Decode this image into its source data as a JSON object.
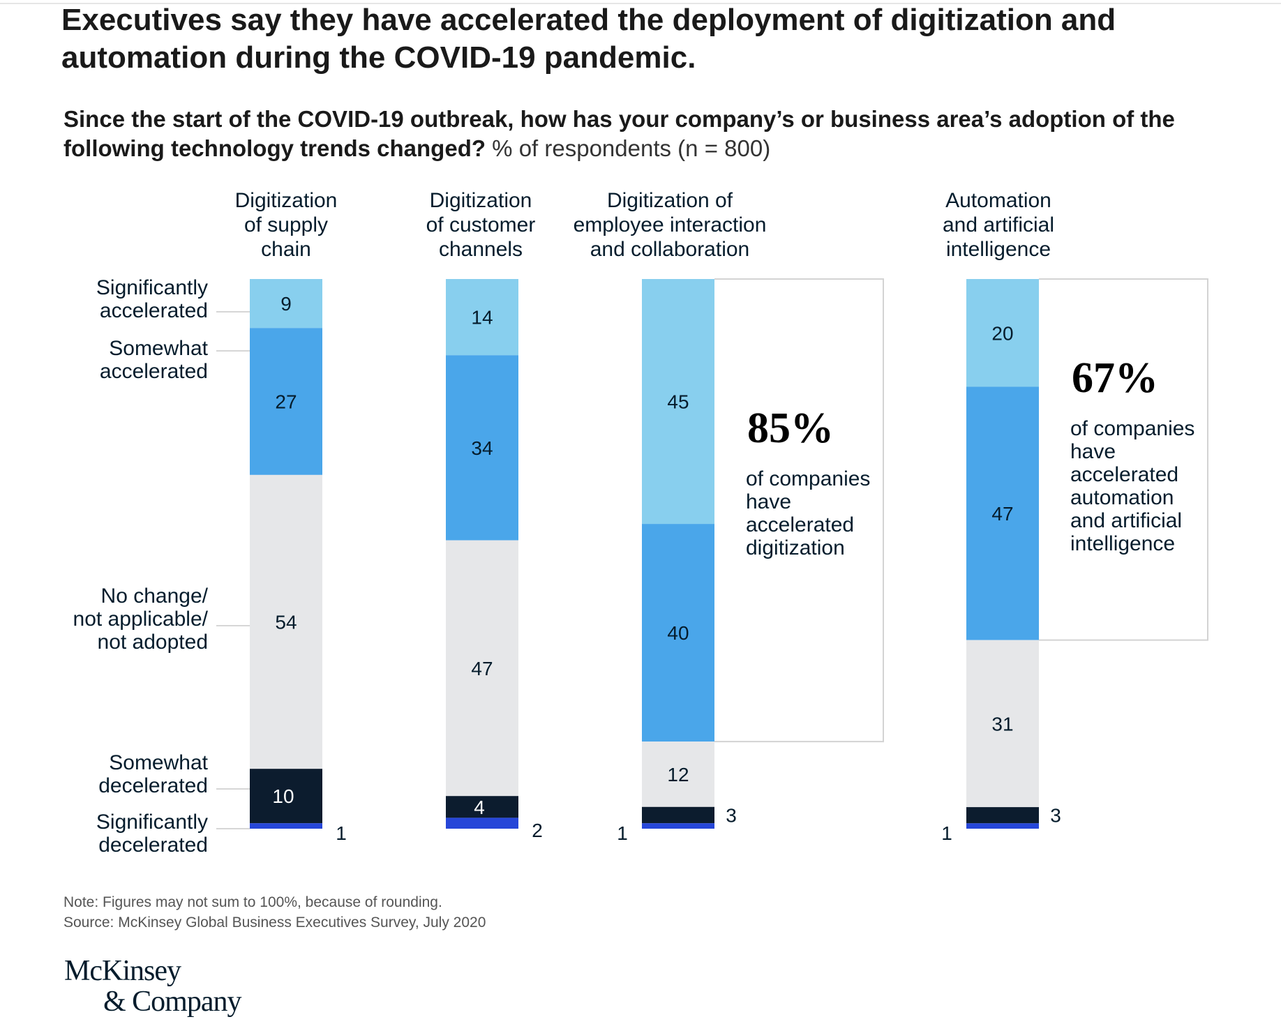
{
  "title": "Executives say they have accelerated the deployment of digitization and automation during the COVID-19 pandemic.",
  "subtitle_question": "Since the start of the COVID-19 outbreak, how has your company’s or business area’s adoption of the following technology trends changed?",
  "subtitle_unit": " % of respondents (n = 800)",
  "note": "Note: Figures may not sum to 100%, because of rounding.",
  "source": "Source: McKinsey Global Business Executives Survey, July 2020",
  "logo": {
    "line1": "McKinsey",
    "line2": "& Company"
  },
  "colors": {
    "significantly_accelerated": "#88cfee",
    "somewhat_accelerated": "#4aa6ea",
    "no_change": "#e6e7e9",
    "somewhat_decelerated": "#0c1c2e",
    "significantly_decelerated": "#2646d8",
    "bracket": "#d3d3d3"
  },
  "chart_data": {
    "type": "bar",
    "stacked": true,
    "categories": [
      [
        "Digitization",
        "of supply",
        "chain"
      ],
      [
        "Digitization",
        "of customer",
        "channels"
      ],
      [
        "Digitization of",
        "employee interaction",
        "and collaboration"
      ],
      [
        "Automation",
        "and artificial",
        "intelligence"
      ]
    ],
    "series": [
      {
        "name": [
          "Significantly",
          "accelerated"
        ],
        "color_key": "significantly_accelerated",
        "values": [
          9,
          14,
          45,
          20
        ]
      },
      {
        "name": [
          "Somewhat",
          "accelerated"
        ],
        "color_key": "somewhat_accelerated",
        "values": [
          27,
          34,
          40,
          47
        ]
      },
      {
        "name": [
          "No change/",
          "not applicable/",
          "not adopted"
        ],
        "color_key": "no_change",
        "values": [
          54,
          47,
          12,
          31
        ]
      },
      {
        "name": [
          "Somewhat",
          "decelerated"
        ],
        "color_key": "somewhat_decelerated",
        "values": [
          10,
          4,
          3,
          3
        ]
      },
      {
        "name": [
          "Significantly",
          "decelerated"
        ],
        "color_key": "significantly_decelerated",
        "values": [
          1,
          2,
          1,
          1
        ]
      }
    ],
    "callouts": [
      {
        "category_index": 2,
        "value": "85%",
        "text": [
          "of companies",
          "have",
          "accelerated",
          "digitization"
        ]
      },
      {
        "category_index": 3,
        "value": "67%",
        "text": [
          "of companies",
          "have",
          "accelerated",
          "automation",
          "and artificial",
          "intelligence"
        ]
      }
    ],
    "ylim": [
      0,
      100
    ],
    "legend": "left"
  }
}
